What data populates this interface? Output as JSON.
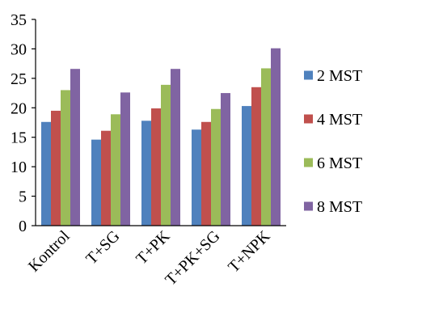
{
  "chart_data": {
    "type": "bar",
    "title": "",
    "xlabel": "",
    "ylabel": "",
    "ylim": [
      0,
      35
    ],
    "yticks": [
      0,
      5,
      10,
      15,
      20,
      25,
      30,
      35
    ],
    "grid": false,
    "legend_position": "right",
    "categories": [
      "Kontrol",
      "T+SG",
      "T+PK",
      "T+PK+SG",
      "T+NPK"
    ],
    "series": [
      {
        "name": "2 MST",
        "color": "#4F81BD",
        "values": [
          17.6,
          14.6,
          17.8,
          16.3,
          20.3
        ]
      },
      {
        "name": "4 MST",
        "color": "#C0504D",
        "values": [
          19.5,
          16.1,
          19.9,
          17.6,
          23.5
        ]
      },
      {
        "name": "6 MST",
        "color": "#9BBB59",
        "values": [
          23.0,
          18.9,
          23.9,
          19.8,
          26.7
        ]
      },
      {
        "name": "8 MST",
        "color": "#8064A2",
        "values": [
          26.6,
          22.6,
          26.6,
          22.5,
          30.1
        ]
      }
    ]
  }
}
